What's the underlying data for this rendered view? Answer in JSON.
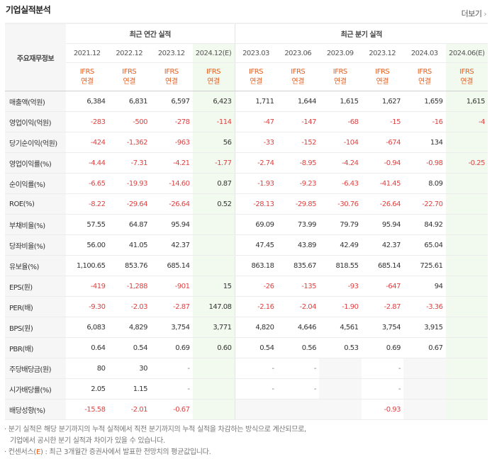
{
  "header": {
    "title": "기업실적분석",
    "more_label": "더보기"
  },
  "table": {
    "corner_label": "주요재무정보",
    "groups": [
      {
        "label": "최근 연간 실적"
      },
      {
        "label": "최근 분기 실적"
      }
    ],
    "periods": [
      {
        "label": "2021.12",
        "est": false
      },
      {
        "label": "2022.12",
        "est": false
      },
      {
        "label": "2023.12",
        "est": false
      },
      {
        "label": "2024.12(E)",
        "est": true
      },
      {
        "label": "2023.03",
        "est": false
      },
      {
        "label": "2023.06",
        "est": false
      },
      {
        "label": "2023.09",
        "est": false
      },
      {
        "label": "2023.12",
        "est": false
      },
      {
        "label": "2024.03",
        "est": false
      },
      {
        "label": "2024.06(E)",
        "est": true
      }
    ],
    "basis_top": "IFRS",
    "basis_bottom": "연결",
    "rows": [
      {
        "label": "매출액(억원)",
        "values": [
          "6,384",
          "6,831",
          "6,597",
          "6,423",
          "1,711",
          "1,644",
          "1,615",
          "1,627",
          "1,659",
          "1,615"
        ]
      },
      {
        "label": "영업이익(억원)",
        "values": [
          "-283",
          "-500",
          "-278",
          "-114",
          "-47",
          "-147",
          "-68",
          "-15",
          "-16",
          "-4"
        ]
      },
      {
        "label": "당기순이익(억원)",
        "values": [
          "-424",
          "-1,362",
          "-963",
          "56",
          "-33",
          "-152",
          "-104",
          "-674",
          "134",
          ""
        ]
      },
      {
        "label": "영업이익률(%)",
        "values": [
          "-4.44",
          "-7.31",
          "-4.21",
          "-1.77",
          "-2.74",
          "-8.95",
          "-4.24",
          "-0.94",
          "-0.98",
          "-0.25"
        ]
      },
      {
        "label": "순이익률(%)",
        "values": [
          "-6.65",
          "-19.93",
          "-14.60",
          "0.87",
          "-1.93",
          "-9.23",
          "-6.43",
          "-41.45",
          "8.09",
          ""
        ]
      },
      {
        "label": "ROE(%)",
        "values": [
          "-8.22",
          "-29.64",
          "-26.64",
          "0.52",
          "-28.13",
          "-29.85",
          "-30.76",
          "-26.64",
          "-22.70",
          ""
        ]
      },
      {
        "label": "부채비율(%)",
        "values": [
          "57.55",
          "64.87",
          "95.94",
          "",
          "69.09",
          "73.99",
          "79.79",
          "95.94",
          "84.92",
          ""
        ]
      },
      {
        "label": "당좌비율(%)",
        "values": [
          "56.00",
          "41.05",
          "42.37",
          "",
          "47.45",
          "43.89",
          "42.49",
          "42.37",
          "65.04",
          ""
        ]
      },
      {
        "label": "유보율(%)",
        "values": [
          "1,100.65",
          "853.76",
          "685.14",
          "",
          "863.18",
          "835.67",
          "818.55",
          "685.14",
          "725.61",
          ""
        ]
      },
      {
        "label": "EPS(원)",
        "values": [
          "-419",
          "-1,288",
          "-901",
          "15",
          "-26",
          "-135",
          "-93",
          "-647",
          "94",
          ""
        ]
      },
      {
        "label": "PER(배)",
        "values": [
          "-9.30",
          "-2.03",
          "-2.87",
          "147.08",
          "-2.16",
          "-2.04",
          "-1.90",
          "-2.87",
          "-3.36",
          ""
        ]
      },
      {
        "label": "BPS(원)",
        "values": [
          "6,083",
          "4,829",
          "3,754",
          "3,771",
          "4,820",
          "4,646",
          "4,561",
          "3,754",
          "3,915",
          ""
        ]
      },
      {
        "label": "PBR(배)",
        "values": [
          "0.64",
          "0.54",
          "0.69",
          "0.60",
          "0.54",
          "0.56",
          "0.53",
          "0.69",
          "0.67",
          ""
        ]
      },
      {
        "label": "주당배당금(원)",
        "values": [
          "80",
          "30",
          "-",
          "",
          "-",
          "-",
          "",
          "-",
          "",
          ""
        ]
      },
      {
        "label": "시가배당률(%)",
        "values": [
          "2.05",
          "1.15",
          "-",
          "",
          "-",
          "-",
          "",
          "-",
          "",
          ""
        ]
      },
      {
        "label": "배당성향(%)",
        "values": [
          "-15.58",
          "-2.01",
          "-0.67",
          "",
          "",
          "",
          "",
          "-0.93",
          "",
          ""
        ]
      }
    ]
  },
  "notes": {
    "line1": "· 분기 실적은 해당 분기까지의 누적 실적에서 직전 분기까지의 누적 실적을 차감하는 방식으로 계산되므로,",
    "line2": "기업에서 공시한 분기 실적과 차이가 있을 수 있습니다.",
    "line3_prefix": "· 컨센서스(",
    "line3_e": "E",
    "line3_suffix": ") : 최근 3개월간 증권사에서 발표한 전망치의 평균값입니다."
  }
}
